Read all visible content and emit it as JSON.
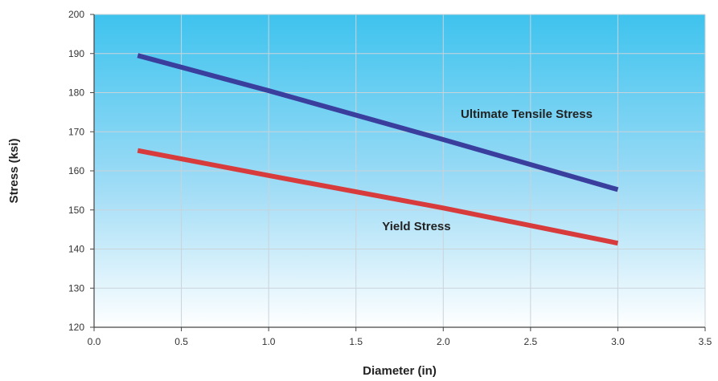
{
  "chart_data": {
    "type": "line",
    "xlabel": "Diameter (in)",
    "ylabel": "Stress (ksi)",
    "xlim": [
      0.0,
      3.5
    ],
    "ylim": [
      120,
      200
    ],
    "x_ticks": [
      "0.0",
      "0.5",
      "1.0",
      "1.5",
      "2.0",
      "2.5",
      "3.0",
      "3.5"
    ],
    "y_ticks": [
      "120",
      "130",
      "140",
      "150",
      "160",
      "170",
      "180",
      "190",
      "200"
    ],
    "grid": true,
    "background": "gradient sky-blue to white",
    "series": [
      {
        "name": "Ultimate Tensile Stress",
        "color": "#3a3f9e",
        "x": [
          0.25,
          1.0,
          2.0,
          3.0
        ],
        "y": [
          189.5,
          180.5,
          168.0,
          155.2
        ]
      },
      {
        "name": "Yield Stress",
        "color": "#d83b3b",
        "x": [
          0.25,
          1.0,
          2.0,
          3.0
        ],
        "y": [
          165.2,
          158.8,
          150.5,
          141.5
        ]
      }
    ],
    "annotations": [
      {
        "text": "Ultimate Tensile Stress",
        "x": 2.1,
        "y": 173.5,
        "series": 0
      },
      {
        "text": "Yield Stress",
        "x": 1.65,
        "y": 144.8,
        "series": 1
      }
    ]
  }
}
